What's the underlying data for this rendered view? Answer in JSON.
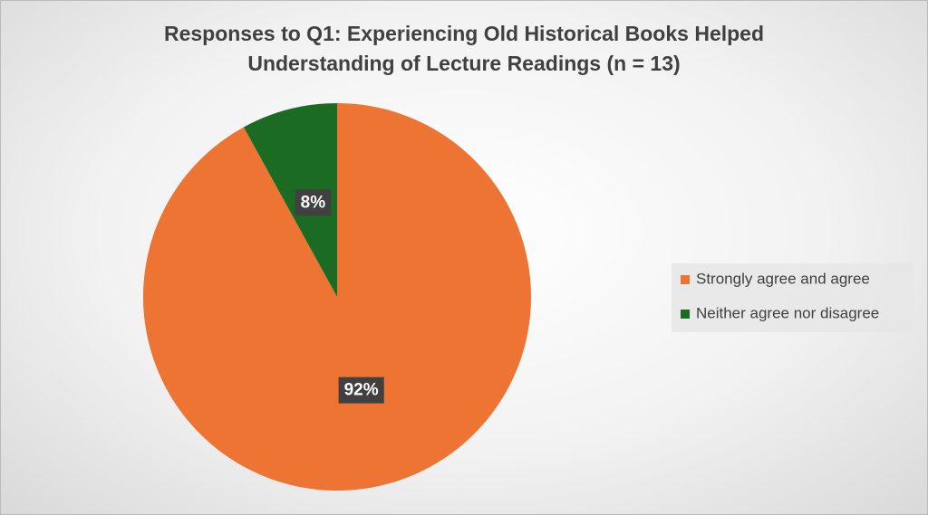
{
  "chart_data": {
    "type": "pie",
    "title": "Responses to Q1: Experiencing Old Historical Books Helped Understanding of Lecture Readings (n = 13)",
    "categories": [
      "Strongly agree and agree",
      "Neither agree nor disagree"
    ],
    "values": [
      92,
      8
    ],
    "value_labels": [
      "92%",
      "8%"
    ],
    "colors": [
      "#ed7433",
      "#1b6b23"
    ],
    "legend": "right"
  }
}
